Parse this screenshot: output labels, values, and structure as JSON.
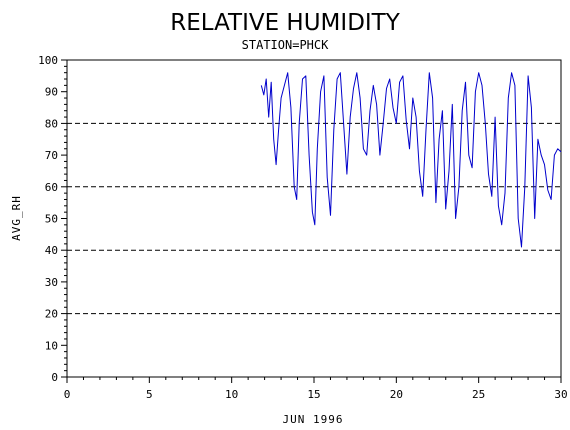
{
  "chart_data": {
    "type": "line",
    "title": "RELATIVE HUMIDITY",
    "subtitle": "STATION=PHCK",
    "xlabel": "JUN 1996",
    "ylabel": "AVG_RH",
    "xlim": [
      0,
      30
    ],
    "ylim": [
      0,
      100
    ],
    "x_ticks": [
      0,
      5,
      10,
      15,
      20,
      25,
      30
    ],
    "y_ticks": [
      0,
      10,
      20,
      30,
      40,
      50,
      60,
      70,
      80,
      90,
      100
    ],
    "gridlines_y": [
      0,
      20,
      40,
      60,
      80,
      100
    ],
    "grid": "horizontal dashed",
    "line_color": "#0000cc",
    "series": [
      {
        "name": "",
        "x": [
          11.8,
          11.95,
          12.1,
          12.25,
          12.4,
          12.55,
          12.7,
          12.85,
          13.0,
          13.2,
          13.4,
          13.6,
          13.8,
          13.95,
          14.1,
          14.3,
          14.5,
          14.7,
          14.9,
          15.05,
          15.2,
          15.4,
          15.6,
          15.8,
          16.0,
          16.2,
          16.4,
          16.6,
          16.8,
          17.0,
          17.2,
          17.4,
          17.6,
          17.8,
          18.0,
          18.2,
          18.4,
          18.6,
          18.8,
          19.0,
          19.2,
          19.4,
          19.6,
          19.8,
          20.0,
          20.2,
          20.4,
          20.6,
          20.8,
          21.0,
          21.2,
          21.4,
          21.6,
          21.8,
          22.0,
          22.2,
          22.4,
          22.6,
          22.8,
          23.0,
          23.2,
          23.4,
          23.6,
          23.8,
          24.0,
          24.2,
          24.4,
          24.6,
          24.8,
          25.0,
          25.2,
          25.4,
          25.6,
          25.8,
          26.0,
          26.2,
          26.4,
          26.6,
          26.8,
          27.0,
          27.2,
          27.4,
          27.6,
          27.8,
          28.0,
          28.2,
          28.4,
          28.6,
          28.8,
          29.0,
          29.2,
          29.4,
          29.6,
          29.8,
          30.0
        ],
        "y": [
          92,
          89,
          94,
          82,
          93,
          75,
          67,
          78,
          88,
          92,
          96,
          85,
          60,
          56,
          80,
          94,
          95,
          70,
          52,
          48,
          72,
          90,
          95,
          63,
          51,
          78,
          94,
          96,
          80,
          64,
          82,
          91,
          96,
          88,
          72,
          70,
          84,
          92,
          86,
          70,
          80,
          91,
          94,
          85,
          80,
          93,
          95,
          81,
          72,
          88,
          82,
          65,
          57,
          78,
          96,
          88,
          55,
          75,
          84,
          53,
          65,
          86,
          50,
          60,
          84,
          93,
          70,
          66,
          90,
          96,
          92,
          80,
          64,
          57,
          82,
          54,
          48,
          58,
          88,
          96,
          92,
          50,
          41,
          60,
          95,
          85,
          50,
          75,
          70,
          67,
          59,
          56,
          70,
          72,
          71
        ]
      }
    ]
  }
}
